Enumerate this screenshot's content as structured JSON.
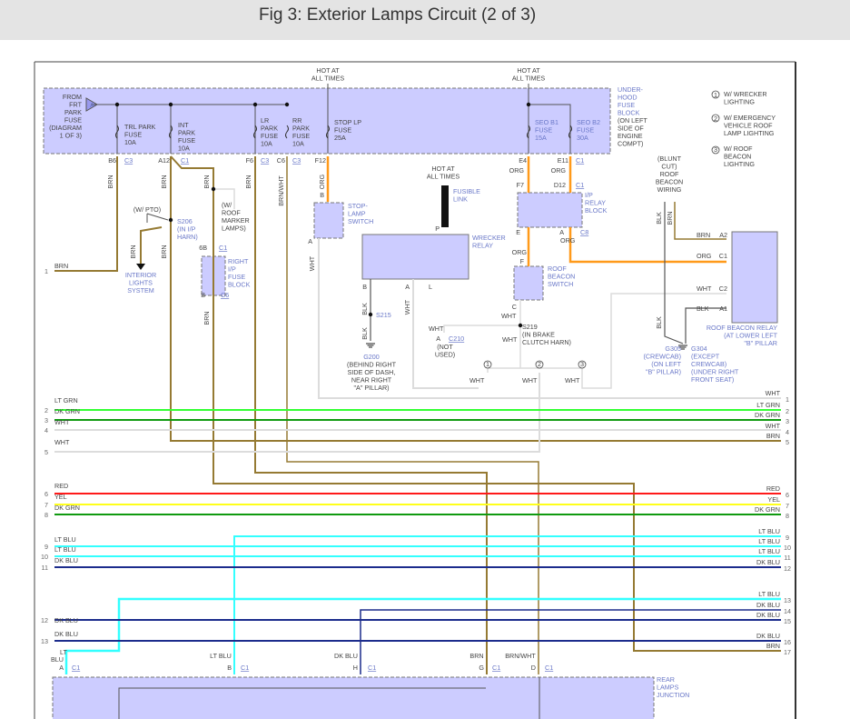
{
  "title": "Fig 3: Exterior Lamps Circuit (2 of 3)",
  "colors": {
    "BRN": "#957a33",
    "ORG": "#ff9a1a",
    "LT GRN": "#33ff33",
    "DK GRN": "#109a10",
    "WHT": "#dcdcdc",
    "RED": "#ff1a1a",
    "YEL": "#ffff1a",
    "LT BLU": "#33ffff",
    "DK BLU": "#1c2c8c",
    "BLK": "#555555",
    "block": "#ccccff"
  },
  "hot": [
    "HOT AT",
    "ALL TIMES"
  ],
  "from_frt": [
    "FROM",
    "FRT",
    "PARK",
    "FUSE",
    "(DIAGRAM",
    "1 OF 3)"
  ],
  "tri": "A",
  "fuses": {
    "trl": [
      "TRL PARK",
      "FUSE",
      "10A"
    ],
    "int": [
      "INT",
      "PARK",
      "FUSE",
      "10A"
    ],
    "lr": [
      "LR",
      "PARK",
      "FUSE",
      "10A"
    ],
    "rr": [
      "RR",
      "PARK",
      "FUSE",
      "10A"
    ],
    "stop": [
      "STOP LP",
      "FUSE",
      "25A"
    ],
    "seo1": [
      "SEO B1",
      "FUSE",
      "15A"
    ],
    "seo2": [
      "SEO B2",
      "FUSE",
      "30A"
    ]
  },
  "underhood": [
    "UNDER-",
    "HOOD",
    "FUSE",
    "BLOCK",
    "(ON LEFT",
    "SIDE OF",
    "ENGINE",
    "COMPT)"
  ],
  "pins": {
    "b6": "B6",
    "a12": "A12",
    "f6": "F6",
    "c6": "C6",
    "f12": "F12",
    "e4": "E4",
    "e11": "E11",
    "c3": "C3",
    "c1": "C1",
    "c8": "C8",
    "c6c": "C6",
    "b": "B",
    "a": "A",
    "p": "P",
    "l": "L",
    "e": "E",
    "f": "F",
    "c": "C",
    "f7": "F7",
    "d12": "D12",
    "6b": "6B",
    "a2": "A2",
    "c1p": "C1",
    "c2": "C2",
    "a1": "A1",
    "g": "G",
    "d": "D",
    "h": "H"
  },
  "wires": {
    "brn": "BRN",
    "org": "ORG",
    "wht": "WHT",
    "blk": "BLK",
    "brnwht": "BRN/WHT",
    "ltblu": "LT BLU",
    "dkblu": "DK BLU",
    "lt": "LT",
    "blu": "BLU"
  },
  "pto": "(W/ PTO)",
  "s206": [
    "S206",
    "(IN I/P",
    "HARN)"
  ],
  "interior": [
    "INTERIOR",
    "LIGHTS",
    "SYSTEM"
  ],
  "roof_marker": [
    "(W/",
    "ROOF",
    "MARKER",
    "LAMPS)"
  ],
  "right_ip": [
    "RIGHT",
    "I/P",
    "FUSE",
    "BLOCK"
  ],
  "stop_switch": [
    "STOP-",
    "LAMP",
    "SWITCH"
  ],
  "fusible": [
    "FUSIBLE",
    "LINK"
  ],
  "wrecker_relay": [
    "WRECKER",
    "RELAY"
  ],
  "s215": "S215",
  "g200": [
    "G200",
    "(BEHIND RIGHT",
    "SIDE OF DASH,",
    "NEAR RIGHT",
    "\"A\" PILLAR)"
  ],
  "ip_relay": [
    "I/P",
    "RELAY",
    "BLOCK"
  ],
  "roof_switch": [
    "ROOF",
    "BEACON",
    "SWITCH"
  ],
  "s219": [
    "S219",
    "(IN BRAKE",
    "CLUTCH HARN)"
  ],
  "c210": "C210",
  "not_used": [
    "(NOT",
    "USED)"
  ],
  "branches": [
    "1",
    "2",
    "3"
  ],
  "legend": [
    {
      "num": "1",
      "lines": [
        "W/ WRECKER",
        "LIGHTING"
      ]
    },
    {
      "num": "2",
      "lines": [
        "W/ EMERGENCY",
        "VEHICLE ROOF",
        "LAMP LIGHTING"
      ]
    },
    {
      "num": "3",
      "lines": [
        "W/ ROOF",
        "BEACON",
        "LIGHTING"
      ]
    }
  ],
  "blunt": [
    "(BLUNT",
    "CUT)",
    "ROOF",
    "BEACON",
    "WIRING"
  ],
  "roof_relay": [
    "ROOF BEACON RELAY",
    "(AT LOWER LEFT",
    "\"B\" PILLAR"
  ],
  "g305": [
    "G305",
    "(CREWCAB)",
    "(ON LEFT",
    "\"B\" PILLAR)"
  ],
  "g304": [
    "G304",
    "(EXCEPT",
    "CREWCAB)",
    "(UNDER RIGHT",
    "FRONT SEAT)"
  ],
  "left_rows": [
    {
      "num": "1",
      "color": "BRN"
    },
    {
      "num": "2",
      "color": "LT GRN"
    },
    {
      "num": "3",
      "color": "DK GRN"
    },
    {
      "num": "4",
      "color": "WHT"
    },
    {
      "num": "5",
      "color": "WHT"
    },
    {
      "num": "6",
      "color": "RED"
    },
    {
      "num": "7",
      "color": "YEL"
    },
    {
      "num": "8",
      "color": "DK GRN"
    },
    {
      "num": "9",
      "color": "LT BLU"
    },
    {
      "num": "10",
      "color": "LT BLU"
    },
    {
      "num": "11",
      "color": "DK BLU"
    },
    {
      "num": "12",
      "color": "DK BLU"
    },
    {
      "num": "13",
      "color": "DK BLU"
    }
  ],
  "right_rows": [
    {
      "num": "1",
      "color": "WHT"
    },
    {
      "num": "2",
      "color": "LT GRN"
    },
    {
      "num": "3",
      "color": "DK GRN"
    },
    {
      "num": "4",
      "color": "WHT"
    },
    {
      "num": "5",
      "color": "BRN"
    },
    {
      "num": "6",
      "color": "RED"
    },
    {
      "num": "7",
      "color": "YEL"
    },
    {
      "num": "8",
      "color": "DK GRN"
    },
    {
      "num": "9",
      "color": "LT BLU"
    },
    {
      "num": "10",
      "color": "LT BLU"
    },
    {
      "num": "11",
      "color": "LT BLU"
    },
    {
      "num": "12",
      "color": "DK BLU"
    },
    {
      "num": "13",
      "color": "LT BLU"
    },
    {
      "num": "14",
      "color": "DK BLU"
    },
    {
      "num": "15",
      "color": "DK BLU"
    },
    {
      "num": "16",
      "color": "DK BLU"
    },
    {
      "num": "17",
      "color": "BRN"
    }
  ],
  "rear_junction": [
    "REAR",
    "LAMPS",
    "JUNCTION"
  ]
}
